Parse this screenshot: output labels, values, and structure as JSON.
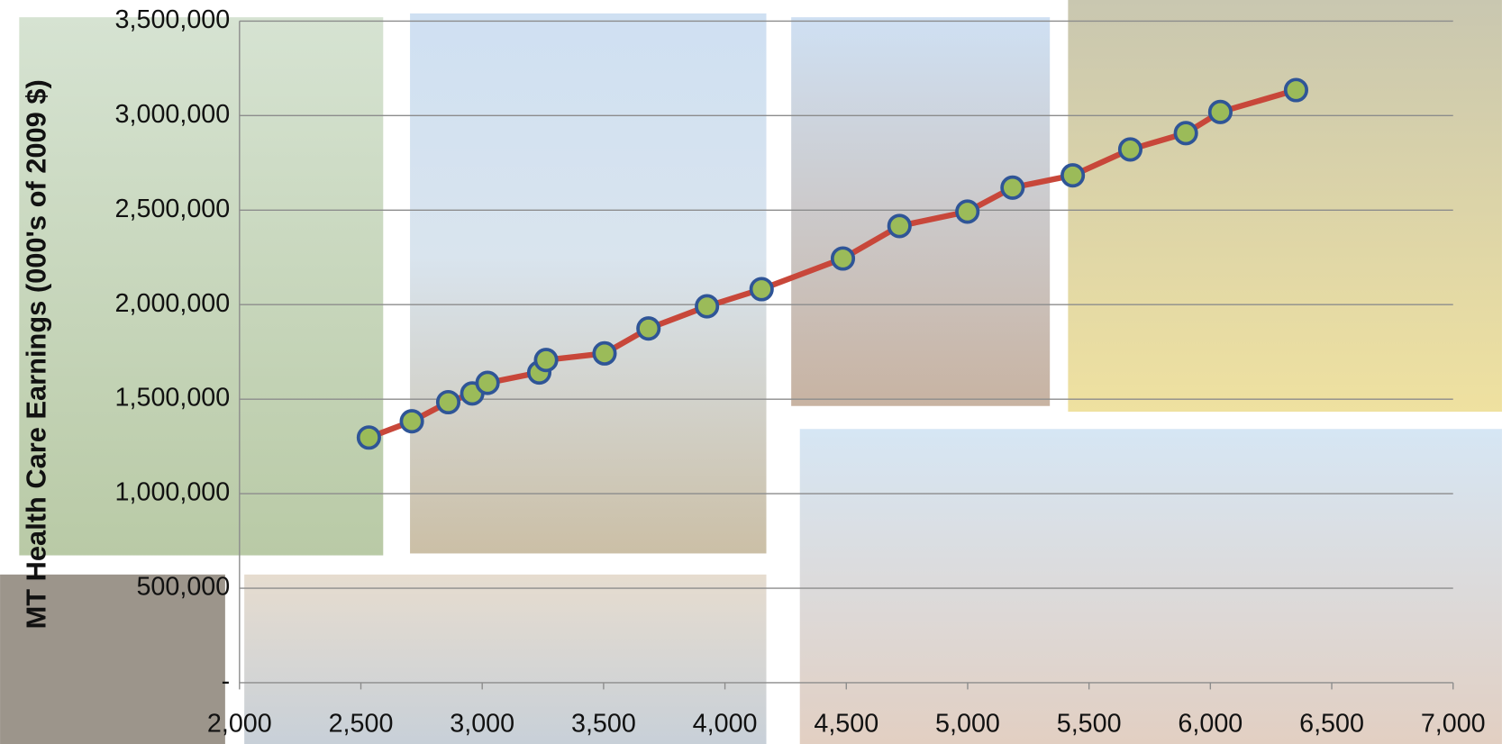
{
  "chart_data": {
    "type": "line",
    "y_label": "MT Health Care Earnings (000's of 2009 $)",
    "x": [
      2533,
      2710,
      2860,
      2959,
      3022,
      3235,
      3263,
      3504,
      3685,
      3926,
      4151,
      4486,
      4719,
      4999,
      5185,
      5433,
      5670,
      5899,
      6041,
      6353
    ],
    "values": [
      1297000,
      1383000,
      1484000,
      1530000,
      1586000,
      1641000,
      1707000,
      1742000,
      1874000,
      1991000,
      2082000,
      2244000,
      2416000,
      2492000,
      2619000,
      2684000,
      2821000,
      2907000,
      3019000,
      3135000
    ],
    "color": "#c8473a",
    "marker_color": "#9bbb59",
    "marker_edge_color": "#2f5597",
    "xlim": [
      2000,
      7000
    ],
    "xticks": [
      {
        "value": 2000,
        "label": "2,000"
      },
      {
        "value": 2500,
        "label": "2,500"
      },
      {
        "value": 3000,
        "label": "3,000"
      },
      {
        "value": 3500,
        "label": "3,500"
      },
      {
        "value": 4000,
        "label": "4,000"
      },
      {
        "value": 4500,
        "label": "4,500"
      },
      {
        "value": 5000,
        "label": "5,000"
      },
      {
        "value": 5500,
        "label": "5,500"
      },
      {
        "value": 6000,
        "label": "6,000"
      },
      {
        "value": 6500,
        "label": "6,500"
      },
      {
        "value": 7000,
        "label": "7,000"
      }
    ],
    "ylim": [
      0,
      3500000
    ],
    "yticks": [
      {
        "value": 0,
        "label": "-"
      },
      {
        "value": 500000,
        "label": "500,000"
      },
      {
        "value": 1000000,
        "label": "1,000,000"
      },
      {
        "value": 1500000,
        "label": "1,500,000"
      },
      {
        "value": 2000000,
        "label": "2,000,000"
      },
      {
        "value": 2500000,
        "label": "2,500,000"
      },
      {
        "value": 3000000,
        "label": "3,000,000"
      },
      {
        "value": 3500000,
        "label": "3,500,000"
      }
    ],
    "grid": true
  }
}
